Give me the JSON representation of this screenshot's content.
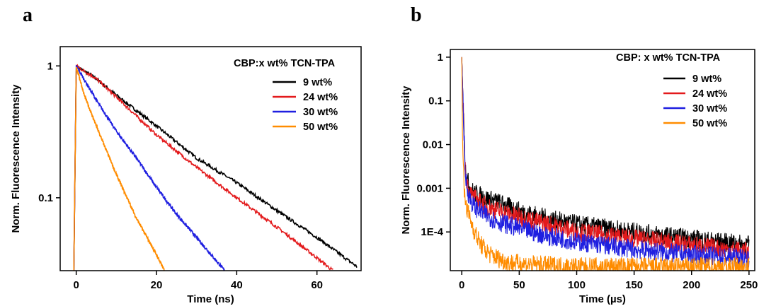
{
  "chart_data": [
    {
      "panel_label": "a",
      "type": "line",
      "title": "",
      "xlabel": "Time (ns)",
      "ylabel": "Norm. Fluorescence Intensity",
      "xlim": [
        -4,
        71
      ],
      "ylim": [
        0.028,
        1.4
      ],
      "y_scale": "log",
      "x_ticks": [
        0,
        20,
        40,
        60
      ],
      "x_tick_labels": [
        "0",
        "20",
        "40",
        "60"
      ],
      "y_ticks": [
        0.1,
        1
      ],
      "y_tick_labels": [
        "0.1",
        "1"
      ],
      "legend_title": "CBP:x wt% TCN-TPA",
      "legend_position": "top-right",
      "grid": false,
      "series": [
        {
          "name": "9 wt%",
          "color": "#000000",
          "x": [
            -0.6,
            0,
            5,
            10,
            20,
            30,
            40,
            50,
            60,
            70
          ],
          "values": [
            0.028,
            1.0,
            0.8,
            0.6,
            0.35,
            0.2,
            0.13,
            0.08,
            0.05,
            0.03
          ]
        },
        {
          "name": "24 wt%",
          "color": "#e31a1c",
          "x": [
            -0.6,
            0,
            5,
            10,
            20,
            30,
            40,
            50,
            60,
            64
          ],
          "values": [
            0.028,
            1.0,
            0.8,
            0.58,
            0.3,
            0.17,
            0.1,
            0.06,
            0.035,
            0.028
          ]
        },
        {
          "name": "30 wt%",
          "color": "#1f1fe0",
          "x": [
            -0.6,
            0,
            5,
            10,
            15,
            20,
            25,
            30,
            37
          ],
          "values": [
            0.028,
            1.0,
            0.55,
            0.32,
            0.2,
            0.12,
            0.075,
            0.05,
            0.028
          ]
        },
        {
          "name": "50 wt%",
          "color": "#ff8c00",
          "x": [
            -0.6,
            0,
            2,
            5,
            10,
            15,
            20,
            22
          ],
          "values": [
            0.028,
            1.0,
            0.6,
            0.35,
            0.15,
            0.07,
            0.037,
            0.028
          ]
        }
      ]
    },
    {
      "panel_label": "b",
      "type": "line",
      "title": "",
      "xlabel": "Time (µs)",
      "ylabel": "Norm. Fluorescence Intensity",
      "xlim": [
        -10,
        255
      ],
      "ylim": [
        1.3e-05,
        1.5
      ],
      "y_scale": "log",
      "x_ticks": [
        0,
        50,
        100,
        150,
        200,
        250
      ],
      "x_tick_labels": [
        "0",
        "50",
        "100",
        "150",
        "200",
        "250"
      ],
      "y_ticks": [
        0.0001,
        0.001,
        0.01,
        0.1,
        1
      ],
      "y_tick_labels": [
        "1E-4",
        "0.001",
        "0.01",
        "0.1",
        "1"
      ],
      "legend_title": "CBP: x wt% TCN-TPA",
      "legend_position": "top-right",
      "grid": false,
      "series": [
        {
          "name": "9 wt%",
          "color": "#000000",
          "x": [
            0,
            1,
            3,
            6,
            10,
            20,
            30,
            50,
            75,
            100,
            150,
            200,
            250
          ],
          "values": [
            1.0,
            0.12,
            0.003,
            0.0012,
            0.0008,
            0.0006,
            0.0005,
            0.0003,
            0.0002,
            0.00015,
            0.0001,
            7e-05,
            5e-05
          ]
        },
        {
          "name": "24 wt%",
          "color": "#e31a1c",
          "x": [
            0,
            1,
            3,
            6,
            10,
            20,
            30,
            50,
            75,
            100,
            150,
            200,
            250
          ],
          "values": [
            1.0,
            0.12,
            0.0025,
            0.0009,
            0.0006,
            0.0004,
            0.00032,
            0.00022,
            0.00015,
            0.0001,
            7e-05,
            5e-05,
            3.5e-05
          ]
        },
        {
          "name": "30 wt%",
          "color": "#1f1fe0",
          "x": [
            0,
            1,
            3,
            6,
            10,
            20,
            30,
            50,
            75,
            100,
            150,
            200,
            250
          ],
          "values": [
            1.0,
            0.12,
            0.002,
            0.0007,
            0.0004,
            0.00025,
            0.00018,
            0.00012,
            8e-05,
            6e-05,
            4e-05,
            3e-05,
            2.5e-05
          ]
        },
        {
          "name": "50 wt%",
          "color": "#ff8c00",
          "x": [
            0,
            0.5,
            2,
            5,
            10,
            15,
            20,
            25,
            40,
            60,
            100,
            150,
            200,
            250
          ],
          "values": [
            1.0,
            0.03,
            0.0008,
            0.0003,
            0.00012,
            6e-05,
            4e-05,
            3e-05,
            2e-05,
            1.8e-05,
            1.6e-05,
            1.6e-05,
            1.6e-05,
            1.6e-05
          ]
        }
      ]
    }
  ]
}
